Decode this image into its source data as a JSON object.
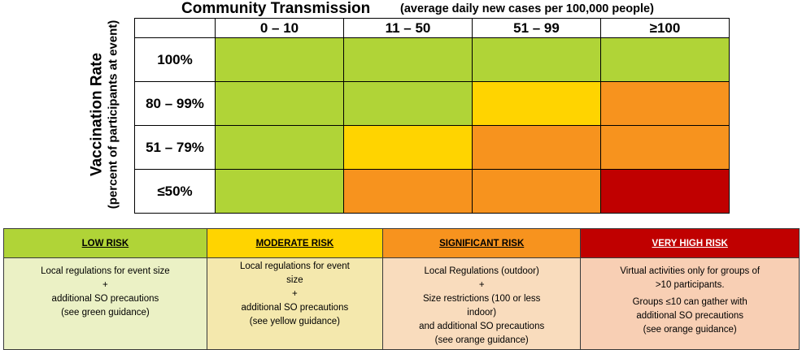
{
  "chart_data": {
    "type": "heatmap",
    "title": "Community Transmission",
    "subtitle": "(average daily new cases per 100,000 people)",
    "ylabel": "Vaccination Rate",
    "ylabel_sub": "(percent of participants at event)",
    "columns": [
      "0 – 10",
      "11 – 50",
      "51 – 99",
      "≥100"
    ],
    "rows": [
      "100%",
      "80 – 99%",
      "51 – 79%",
      "≤50%"
    ],
    "levels": [
      [
        "low",
        "low",
        "low",
        "low"
      ],
      [
        "low",
        "low",
        "moderate",
        "significant"
      ],
      [
        "low",
        "moderate",
        "significant",
        "significant"
      ],
      [
        "low",
        "significant",
        "significant",
        "very_high"
      ]
    ]
  },
  "colors": {
    "low": "#b0d437",
    "moderate": "#ffd400",
    "significant": "#f7931e",
    "very_high": "#c00000"
  },
  "legend": [
    {
      "key": "low",
      "label": "LOW RISK",
      "header_color": "#b0d437",
      "body_color": "#ebf1c5",
      "text": "Local regulations for event size\n+\nadditional SO precautions\n(see green guidance)",
      "text2": ""
    },
    {
      "key": "moderate",
      "label": "MODERATE RISK",
      "header_color": "#ffd400",
      "body_color": "#f4e8ad",
      "text": "Local regulations for event\nsize\n+\nadditional SO precautions\n(see yellow guidance)",
      "text2": ""
    },
    {
      "key": "significant",
      "label": "SIGNIFICANT RISK",
      "header_color": "#f7931e",
      "body_color": "#f9dcbd",
      "text": "Local Regulations (outdoor)\n+\nSize restrictions (100 or less\nindoor)\nand additional SO precautions\n(see orange guidance)",
      "text2": ""
    },
    {
      "key": "very_high",
      "label": "VERY HIGH RISK",
      "header_color": "#c00000",
      "body_color": "#f8cfb4",
      "text": "Virtual activities only for groups of\n>10 participants.",
      "text2": "Groups ≤10 can gather with\nadditional SO precautions\n(see orange guidance)"
    }
  ]
}
